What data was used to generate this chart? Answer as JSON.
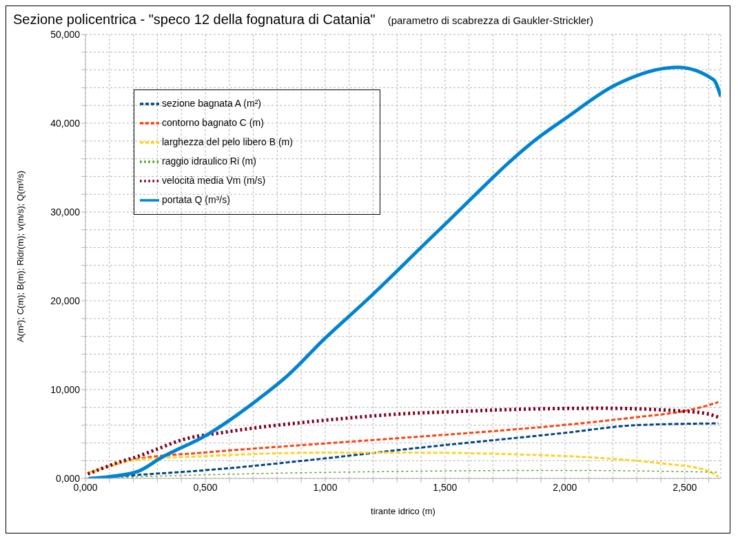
{
  "chart_data": {
    "type": "line",
    "title": "Sezione policentrica - \"speco 12 della fognatura di Catania\"",
    "subtitle": "(parametro di scabrezza di Gaukler-Strickler)",
    "xlabel": "tirante idrico (m)",
    "ylabel": "A(m²);  C(m);  B(m);  Ridr(m);  v(m/s);  Q(m³/s)",
    "xlim": [
      0,
      2.65
    ],
    "ylim": [
      0,
      50
    ],
    "xticks": [
      {
        "value": 0,
        "label": "0,000"
      },
      {
        "value": 0.1,
        "label": null
      },
      {
        "value": 0.2,
        "label": null
      },
      {
        "value": 0.3,
        "label": null
      },
      {
        "value": 0.4,
        "label": null
      },
      {
        "value": 0.5,
        "label": "0,500"
      },
      {
        "value": 0.6,
        "label": null
      },
      {
        "value": 0.7,
        "label": null
      },
      {
        "value": 0.8,
        "label": null
      },
      {
        "value": 0.9,
        "label": null
      },
      {
        "value": 1,
        "label": "1,000"
      },
      {
        "value": 1.1,
        "label": null
      },
      {
        "value": 1.2,
        "label": null
      },
      {
        "value": 1.3,
        "label": null
      },
      {
        "value": 1.4,
        "label": null
      },
      {
        "value": 1.5,
        "label": "1,500"
      },
      {
        "value": 1.6,
        "label": null
      },
      {
        "value": 1.7,
        "label": null
      },
      {
        "value": 1.8,
        "label": null
      },
      {
        "value": 1.9,
        "label": null
      },
      {
        "value": 2,
        "label": "2,000"
      },
      {
        "value": 2.1,
        "label": null
      },
      {
        "value": 2.2,
        "label": null
      },
      {
        "value": 2.3,
        "label": null
      },
      {
        "value": 2.4,
        "label": null
      },
      {
        "value": 2.5,
        "label": "2,500"
      },
      {
        "value": 2.6,
        "label": null
      }
    ],
    "yticks": [
      {
        "value": 0,
        "label": "0,000"
      },
      {
        "value": 2,
        "label": null
      },
      {
        "value": 4,
        "label": null
      },
      {
        "value": 6,
        "label": null
      },
      {
        "value": 8,
        "label": null
      },
      {
        "value": 10,
        "label": "10,000"
      },
      {
        "value": 12,
        "label": null
      },
      {
        "value": 14,
        "label": null
      },
      {
        "value": 16,
        "label": null
      },
      {
        "value": 18,
        "label": null
      },
      {
        "value": 20,
        "label": "20,000"
      },
      {
        "value": 22,
        "label": null
      },
      {
        "value": 24,
        "label": null
      },
      {
        "value": 26,
        "label": null
      },
      {
        "value": 28,
        "label": null
      },
      {
        "value": 30,
        "label": "30,000"
      },
      {
        "value": 32,
        "label": null
      },
      {
        "value": 34,
        "label": null
      },
      {
        "value": 36,
        "label": null
      },
      {
        "value": 38,
        "label": null
      },
      {
        "value": 40,
        "label": "40,000"
      },
      {
        "value": 42,
        "label": null
      },
      {
        "value": 44,
        "label": null
      },
      {
        "value": 46,
        "label": null
      },
      {
        "value": 48,
        "label": null
      },
      {
        "value": 50,
        "label": "50,000"
      }
    ],
    "grid": true,
    "legend": "top left",
    "marker": "none",
    "series": [
      {
        "name": "sezione bagnata A (m²)",
        "color": "#004586",
        "line_style": "dashed",
        "x": [
          0.01,
          0.22,
          0.49,
          0.98,
          1.34,
          1.99,
          2.3,
          2.64
        ],
        "values": [
          0,
          0.4,
          0.9,
          2.2,
          3.3,
          5.1,
          6.0,
          6.2
        ]
      },
      {
        "name": "contorno bagnato C (m)",
        "color": "#ff420e",
        "line_style": "dashed",
        "x": [
          0.01,
          0.22,
          0.49,
          0.98,
          1.34,
          1.99,
          2.3,
          2.5,
          2.58,
          2.64
        ],
        "values": [
          0.6,
          2.2,
          2.9,
          3.9,
          4.6,
          6.0,
          6.9,
          7.6,
          8.1,
          8.6
        ]
      },
      {
        "name": "larghezza del pelo libero B (m)",
        "color": "#ffd320",
        "line_style": "dashed",
        "x": [
          0.01,
          0.22,
          0.49,
          0.98,
          1.34,
          1.81,
          2.15,
          2.4,
          2.58,
          2.64
        ],
        "values": [
          0.6,
          2.1,
          2.5,
          2.9,
          2.9,
          2.7,
          2.3,
          1.7,
          1.0,
          0.2
        ]
      },
      {
        "name": "raggio idraulico Ri (m)",
        "color": "#579d1c",
        "line_style": "dotted",
        "x": [
          0.01,
          0.49,
          1.34,
          1.99,
          2.64
        ],
        "values": [
          0,
          0.4,
          0.8,
          0.9,
          0.7
        ]
      },
      {
        "name": "velocità media Vm (m/s)",
        "color": "#7e0021",
        "line_style": "dotted",
        "x": [
          0.01,
          0.16,
          0.21,
          0.28,
          0.41,
          0.58,
          0.71,
          0.98,
          1.34,
          1.52,
          1.83,
          2.15,
          2.48,
          2.59,
          2.64
        ],
        "values": [
          0.5,
          2.0,
          2.4,
          3.1,
          4.4,
          5.2,
          5.7,
          6.5,
          7.3,
          7.5,
          7.8,
          7.9,
          7.6,
          7.3,
          6.9
        ]
      },
      {
        "name": "portata Q (m³/s)",
        "color": "#0084d1",
        "line_style": "solid",
        "x": [
          0.015,
          0.1,
          0.22,
          0.32,
          0.5,
          0.72,
          0.84,
          1.0,
          1.17,
          1.48,
          1.9,
          2.0,
          2.21,
          2.47,
          2.62,
          2.65
        ],
        "values": [
          0,
          0.2,
          0.8,
          2.4,
          4.8,
          8.9,
          11.5,
          15.8,
          20,
          28.1,
          38.6,
          40.5,
          44.3,
          46.3,
          44.9,
          43
        ]
      }
    ]
  }
}
